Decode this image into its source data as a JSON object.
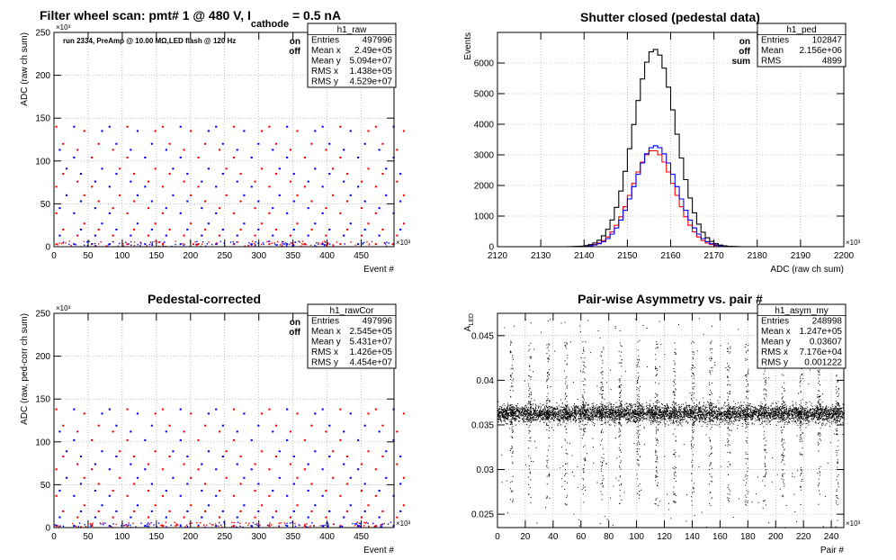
{
  "figure_title": {
    "main": "Filter wheel scan: pmt#   1 @   480 V, I",
    "sub": "cathode",
    "tail": " = 0.5 nA"
  },
  "colors": {
    "on": "#ff0000",
    "off": "#0000ff",
    "sum": "#000000",
    "frame": "#000000",
    "grid": "#9a9a9a"
  },
  "chart_data": [
    {
      "id": "raw",
      "type": "scatter",
      "title": "",
      "xlabel": "Event #",
      "ylabel": "ADC (raw ch sum)",
      "xlim": [
        0,
        498
      ],
      "ylim": [
        0,
        250
      ],
      "x_multiplier": "×10³",
      "y_multiplier": "×10³",
      "xticks": [
        0,
        50,
        100,
        150,
        200,
        250,
        300,
        350,
        400,
        450
      ],
      "yticks": [
        0,
        50,
        100,
        150,
        200,
        250
      ],
      "grid": true,
      "annotation": "run 2334, PreAmp @ 10.00 MΩ,LED flash @  120 Hz",
      "legend": [
        {
          "label": "on",
          "color": "#ff0000"
        },
        {
          "label": "off",
          "color": "#0000ff"
        }
      ],
      "stats": {
        "name": "h1_raw",
        "rows": [
          [
            "Entries",
            "497996"
          ],
          [
            "Mean x",
            "2.49e+05"
          ],
          [
            "Mean y",
            "5.094e+07"
          ],
          [
            "RMS x",
            "1.438e+05"
          ],
          [
            "RMS y",
            "4.529e+07"
          ]
        ]
      },
      "levels": [
        3,
        13,
        20,
        27,
        39,
        45,
        53,
        60,
        70,
        76,
        85,
        91,
        104,
        113,
        120,
        135,
        140
      ],
      "step_period": 26,
      "series": [
        {
          "name": "on",
          "color": "#ff0000"
        },
        {
          "name": "off",
          "color": "#0000ff"
        }
      ]
    },
    {
      "id": "ped",
      "type": "line",
      "title": "Shutter closed (pedestal data)",
      "xlabel": "ADC (raw ch sum)",
      "ylabel": "Events",
      "xlim": [
        2120,
        2200
      ],
      "ylim": [
        0,
        7000
      ],
      "x_multiplier": "×10³",
      "xticks": [
        2120,
        2130,
        2140,
        2150,
        2160,
        2170,
        2180,
        2190,
        2200
      ],
      "yticks": [
        0,
        1000,
        2000,
        3000,
        4000,
        5000,
        6000
      ],
      "grid": true,
      "legend": [
        {
          "label": "on",
          "color": "#ff0000"
        },
        {
          "label": "off",
          "color": "#0000ff"
        },
        {
          "label": "sum",
          "color": "#000000"
        }
      ],
      "stats": {
        "name": "h1_ped",
        "rows": [
          [
            "Entries",
            "102847"
          ],
          [
            "Mean",
            "2.156e+06"
          ],
          [
            "RMS",
            "4899"
          ]
        ]
      },
      "series": [
        {
          "name": "on",
          "color": "#ff0000",
          "center": 2156,
          "sigma": 4.9,
          "peak": 3150
        },
        {
          "name": "off",
          "color": "#0000ff",
          "center": 2156.5,
          "sigma": 4.9,
          "peak": 3300
        },
        {
          "name": "sum",
          "color": "#000000",
          "center": 2156.3,
          "sigma": 4.9,
          "peak": 6450
        }
      ]
    },
    {
      "id": "rawCor",
      "type": "scatter",
      "title": "Pedestal-corrected",
      "xlabel": "Event #",
      "ylabel": "ADC (raw, ped-corr ch sum)",
      "xlim": [
        0,
        498
      ],
      "ylim": [
        0,
        250
      ],
      "x_multiplier": "×10³",
      "y_multiplier": "×10³",
      "xticks": [
        0,
        50,
        100,
        150,
        200,
        250,
        300,
        350,
        400,
        450
      ],
      "yticks": [
        0,
        50,
        100,
        150,
        200,
        250
      ],
      "grid": true,
      "legend": [
        {
          "label": "on",
          "color": "#ff0000"
        },
        {
          "label": "off",
          "color": "#0000ff"
        }
      ],
      "stats": {
        "name": "h1_rawCor",
        "rows": [
          [
            "Entries",
            "497996"
          ],
          [
            "Mean x",
            "2.545e+05"
          ],
          [
            "Mean y",
            "5.431e+07"
          ],
          [
            "RMS x",
            "1.426e+05"
          ],
          [
            "RMS y",
            "4.454e+07"
          ]
        ]
      },
      "levels": [
        2,
        12,
        19,
        26,
        37,
        43,
        51,
        58,
        68,
        74,
        83,
        89,
        102,
        112,
        119,
        133,
        138
      ],
      "step_period": 26,
      "series": [
        {
          "name": "on",
          "color": "#ff0000"
        },
        {
          "name": "off",
          "color": "#0000ff"
        }
      ]
    },
    {
      "id": "asym",
      "type": "scatter",
      "title": "Pair-wise Asymmetry vs. pair #",
      "xlabel": "Pair #",
      "ylabel": "A",
      "ylabel_sub": "LED",
      "xlim": [
        0,
        249
      ],
      "ylim": [
        0.0235,
        0.0475
      ],
      "x_multiplier": "×10³",
      "xticks": [
        0,
        20,
        40,
        60,
        80,
        100,
        120,
        140,
        160,
        180,
        200,
        220,
        240
      ],
      "yticks": [
        0.025,
        0.03,
        0.035,
        0.04,
        0.045
      ],
      "ytick_labels": [
        "0.025",
        "0.03",
        "0.035",
        "0.04",
        "0.045"
      ],
      "grid": true,
      "stats": {
        "name": "h1_asym_my",
        "rows": [
          [
            "Entries",
            "248998"
          ],
          [
            "Mean x",
            "1.247e+05"
          ],
          [
            "Mean y",
            "0.03607"
          ],
          [
            "RMS x",
            "7.176e+04"
          ],
          [
            "RMS y",
            "0.001222"
          ]
        ]
      },
      "band_center": 0.0363,
      "band_halfwidth": 0.0009,
      "spike_period": 13,
      "spike_top": 0.0445,
      "spike_bottom": 0.026
    }
  ]
}
